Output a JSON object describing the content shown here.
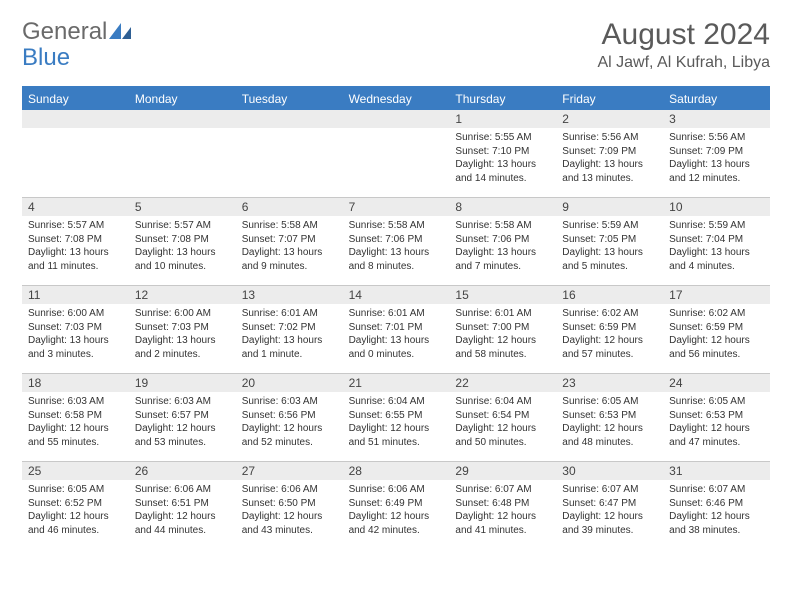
{
  "brand": {
    "word1": "General",
    "word2": "Blue"
  },
  "title": "August 2024",
  "subtitle": "Al Jawf, Al Kufrah, Libya",
  "colors": {
    "header_blue": "#3a7cc2",
    "day_strip": "#ececec",
    "rule": "#c8c8c8",
    "text_grey": "#5a5a5a"
  },
  "daysOfWeek": [
    "Sunday",
    "Monday",
    "Tuesday",
    "Wednesday",
    "Thursday",
    "Friday",
    "Saturday"
  ],
  "weeks": [
    [
      {
        "day": "",
        "sunrise": "",
        "sunset": "",
        "daylight": ""
      },
      {
        "day": "",
        "sunrise": "",
        "sunset": "",
        "daylight": ""
      },
      {
        "day": "",
        "sunrise": "",
        "sunset": "",
        "daylight": ""
      },
      {
        "day": "",
        "sunrise": "",
        "sunset": "",
        "daylight": ""
      },
      {
        "day": "1",
        "sunrise": "Sunrise: 5:55 AM",
        "sunset": "Sunset: 7:10 PM",
        "daylight": "Daylight: 13 hours and 14 minutes."
      },
      {
        "day": "2",
        "sunrise": "Sunrise: 5:56 AM",
        "sunset": "Sunset: 7:09 PM",
        "daylight": "Daylight: 13 hours and 13 minutes."
      },
      {
        "day": "3",
        "sunrise": "Sunrise: 5:56 AM",
        "sunset": "Sunset: 7:09 PM",
        "daylight": "Daylight: 13 hours and 12 minutes."
      }
    ],
    [
      {
        "day": "4",
        "sunrise": "Sunrise: 5:57 AM",
        "sunset": "Sunset: 7:08 PM",
        "daylight": "Daylight: 13 hours and 11 minutes."
      },
      {
        "day": "5",
        "sunrise": "Sunrise: 5:57 AM",
        "sunset": "Sunset: 7:08 PM",
        "daylight": "Daylight: 13 hours and 10 minutes."
      },
      {
        "day": "6",
        "sunrise": "Sunrise: 5:58 AM",
        "sunset": "Sunset: 7:07 PM",
        "daylight": "Daylight: 13 hours and 9 minutes."
      },
      {
        "day": "7",
        "sunrise": "Sunrise: 5:58 AM",
        "sunset": "Sunset: 7:06 PM",
        "daylight": "Daylight: 13 hours and 8 minutes."
      },
      {
        "day": "8",
        "sunrise": "Sunrise: 5:58 AM",
        "sunset": "Sunset: 7:06 PM",
        "daylight": "Daylight: 13 hours and 7 minutes."
      },
      {
        "day": "9",
        "sunrise": "Sunrise: 5:59 AM",
        "sunset": "Sunset: 7:05 PM",
        "daylight": "Daylight: 13 hours and 5 minutes."
      },
      {
        "day": "10",
        "sunrise": "Sunrise: 5:59 AM",
        "sunset": "Sunset: 7:04 PM",
        "daylight": "Daylight: 13 hours and 4 minutes."
      }
    ],
    [
      {
        "day": "11",
        "sunrise": "Sunrise: 6:00 AM",
        "sunset": "Sunset: 7:03 PM",
        "daylight": "Daylight: 13 hours and 3 minutes."
      },
      {
        "day": "12",
        "sunrise": "Sunrise: 6:00 AM",
        "sunset": "Sunset: 7:03 PM",
        "daylight": "Daylight: 13 hours and 2 minutes."
      },
      {
        "day": "13",
        "sunrise": "Sunrise: 6:01 AM",
        "sunset": "Sunset: 7:02 PM",
        "daylight": "Daylight: 13 hours and 1 minute."
      },
      {
        "day": "14",
        "sunrise": "Sunrise: 6:01 AM",
        "sunset": "Sunset: 7:01 PM",
        "daylight": "Daylight: 13 hours and 0 minutes."
      },
      {
        "day": "15",
        "sunrise": "Sunrise: 6:01 AM",
        "sunset": "Sunset: 7:00 PM",
        "daylight": "Daylight: 12 hours and 58 minutes."
      },
      {
        "day": "16",
        "sunrise": "Sunrise: 6:02 AM",
        "sunset": "Sunset: 6:59 PM",
        "daylight": "Daylight: 12 hours and 57 minutes."
      },
      {
        "day": "17",
        "sunrise": "Sunrise: 6:02 AM",
        "sunset": "Sunset: 6:59 PM",
        "daylight": "Daylight: 12 hours and 56 minutes."
      }
    ],
    [
      {
        "day": "18",
        "sunrise": "Sunrise: 6:03 AM",
        "sunset": "Sunset: 6:58 PM",
        "daylight": "Daylight: 12 hours and 55 minutes."
      },
      {
        "day": "19",
        "sunrise": "Sunrise: 6:03 AM",
        "sunset": "Sunset: 6:57 PM",
        "daylight": "Daylight: 12 hours and 53 minutes."
      },
      {
        "day": "20",
        "sunrise": "Sunrise: 6:03 AM",
        "sunset": "Sunset: 6:56 PM",
        "daylight": "Daylight: 12 hours and 52 minutes."
      },
      {
        "day": "21",
        "sunrise": "Sunrise: 6:04 AM",
        "sunset": "Sunset: 6:55 PM",
        "daylight": "Daylight: 12 hours and 51 minutes."
      },
      {
        "day": "22",
        "sunrise": "Sunrise: 6:04 AM",
        "sunset": "Sunset: 6:54 PM",
        "daylight": "Daylight: 12 hours and 50 minutes."
      },
      {
        "day": "23",
        "sunrise": "Sunrise: 6:05 AM",
        "sunset": "Sunset: 6:53 PM",
        "daylight": "Daylight: 12 hours and 48 minutes."
      },
      {
        "day": "24",
        "sunrise": "Sunrise: 6:05 AM",
        "sunset": "Sunset: 6:53 PM",
        "daylight": "Daylight: 12 hours and 47 minutes."
      }
    ],
    [
      {
        "day": "25",
        "sunrise": "Sunrise: 6:05 AM",
        "sunset": "Sunset: 6:52 PM",
        "daylight": "Daylight: 12 hours and 46 minutes."
      },
      {
        "day": "26",
        "sunrise": "Sunrise: 6:06 AM",
        "sunset": "Sunset: 6:51 PM",
        "daylight": "Daylight: 12 hours and 44 minutes."
      },
      {
        "day": "27",
        "sunrise": "Sunrise: 6:06 AM",
        "sunset": "Sunset: 6:50 PM",
        "daylight": "Daylight: 12 hours and 43 minutes."
      },
      {
        "day": "28",
        "sunrise": "Sunrise: 6:06 AM",
        "sunset": "Sunset: 6:49 PM",
        "daylight": "Daylight: 12 hours and 42 minutes."
      },
      {
        "day": "29",
        "sunrise": "Sunrise: 6:07 AM",
        "sunset": "Sunset: 6:48 PM",
        "daylight": "Daylight: 12 hours and 41 minutes."
      },
      {
        "day": "30",
        "sunrise": "Sunrise: 6:07 AM",
        "sunset": "Sunset: 6:47 PM",
        "daylight": "Daylight: 12 hours and 39 minutes."
      },
      {
        "day": "31",
        "sunrise": "Sunrise: 6:07 AM",
        "sunset": "Sunset: 6:46 PM",
        "daylight": "Daylight: 12 hours and 38 minutes."
      }
    ]
  ]
}
